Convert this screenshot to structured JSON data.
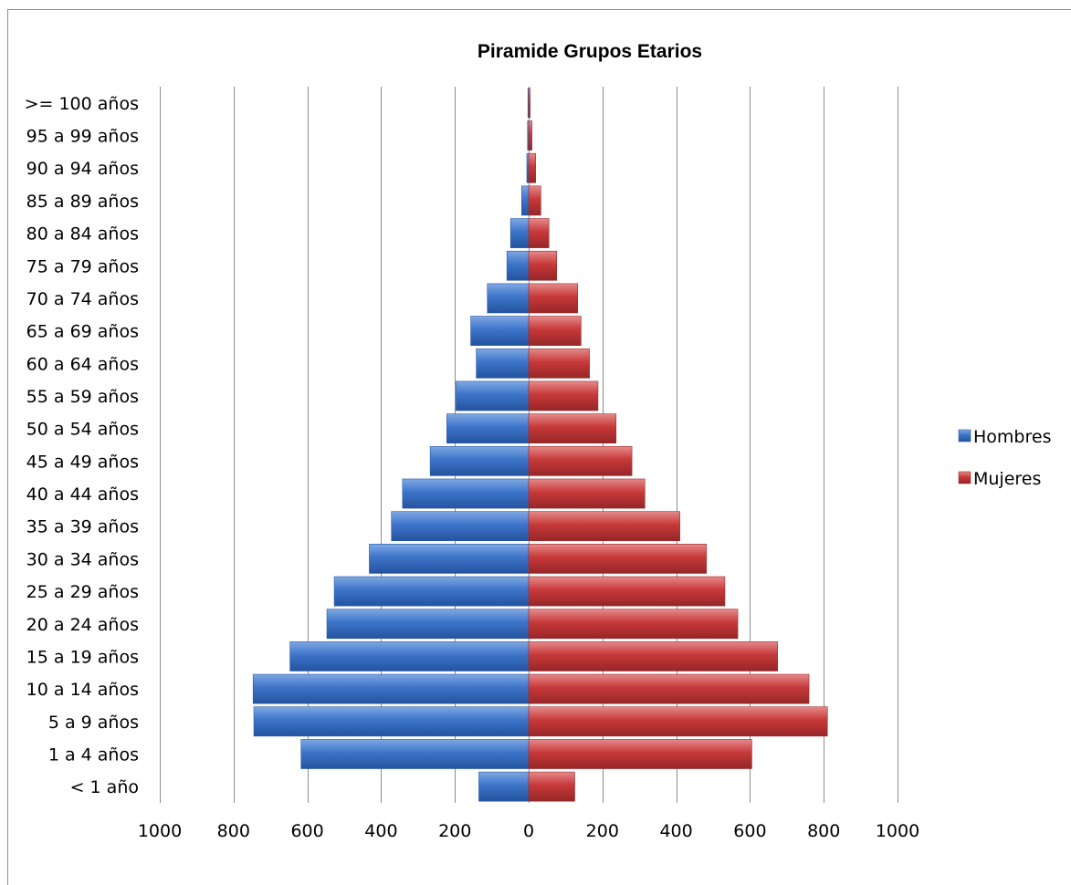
{
  "chart_data": {
    "type": "bar",
    "orientation": "horizontal",
    "title": "Piramide Grupos Etarios",
    "xlabel": "",
    "ylabel": "",
    "xlim": [
      -1000,
      1000
    ],
    "x_ticks": [
      -1000,
      -800,
      -600,
      -400,
      -200,
      0,
      200,
      400,
      600,
      800,
      1000
    ],
    "x_tick_labels": [
      "1000",
      "800",
      "600",
      "400",
      "200",
      "0",
      "200",
      "400",
      "600",
      "800",
      "1000"
    ],
    "grid": "vertical",
    "legend_position": "right",
    "categories": [
      "< 1 año",
      "1 a 4 años",
      "5 a 9 años",
      "10 a 14 años",
      "15 a 19 años",
      "20 a 24 años",
      "25 a 29 años",
      "30 a 34 años",
      "35 a 39 años",
      "40 a 44 años",
      "45 a 49 años",
      "50 a 54 años",
      "55 a 59 años",
      "60 a 64 años",
      "65 a 69 años",
      "70 a 74 años",
      "75 a 79 años",
      "80 a 84 años",
      "85 a 89 años",
      "90 a 94 años",
      "95 a 99 años",
      ">= 100 años"
    ],
    "series": [
      {
        "name": "Hombres",
        "color": "#3d74c9",
        "values": [
          -135,
          -617,
          -745,
          -747,
          -647,
          -547,
          -527,
          -432,
          -372,
          -342,
          -267,
          -222,
          -197,
          -142,
          -157,
          -112,
          -59,
          -49,
          -19,
          -5,
          -3,
          -2
        ]
      },
      {
        "name": "Mujeres",
        "color": "#c7393a",
        "values": [
          125,
          605,
          810,
          760,
          675,
          567,
          532,
          482,
          410,
          315,
          280,
          237,
          188,
          165,
          142,
          133,
          76,
          55,
          33,
          19,
          9,
          4
        ]
      }
    ]
  }
}
